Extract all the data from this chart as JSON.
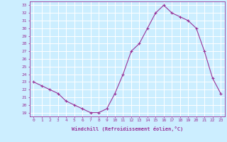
{
  "x": [
    0,
    1,
    2,
    3,
    4,
    5,
    6,
    7,
    8,
    9,
    10,
    11,
    12,
    13,
    14,
    15,
    16,
    17,
    18,
    19,
    20,
    21,
    22,
    23
  ],
  "y": [
    23,
    22.5,
    22,
    21.5,
    20.5,
    20,
    19.5,
    19,
    19,
    19.5,
    21.5,
    24,
    27,
    28,
    30,
    32,
    33,
    32,
    31.5,
    31,
    30,
    27,
    23.5,
    21.5
  ],
  "line_color": "#993399",
  "marker": "+",
  "bg_color": "#cceeff",
  "grid_color": "#ffffff",
  "xlabel": "Windchill (Refroidissement éolien,°C)",
  "xlabel_color": "#993399",
  "ylabel_ticks": [
    19,
    20,
    21,
    22,
    23,
    24,
    25,
    26,
    27,
    28,
    29,
    30,
    31,
    32,
    33
  ],
  "xtick_labels": [
    "0",
    "1",
    "2",
    "3",
    "4",
    "5",
    "6",
    "7",
    "8",
    "9",
    "10",
    "11",
    "12",
    "13",
    "14",
    "15",
    "16",
    "17",
    "18",
    "19",
    "20",
    "21",
    "22",
    "23"
  ],
  "ylim": [
    18.5,
    33.5
  ],
  "xlim": [
    -0.5,
    23.5
  ],
  "tick_color": "#993399",
  "font_family": "monospace"
}
